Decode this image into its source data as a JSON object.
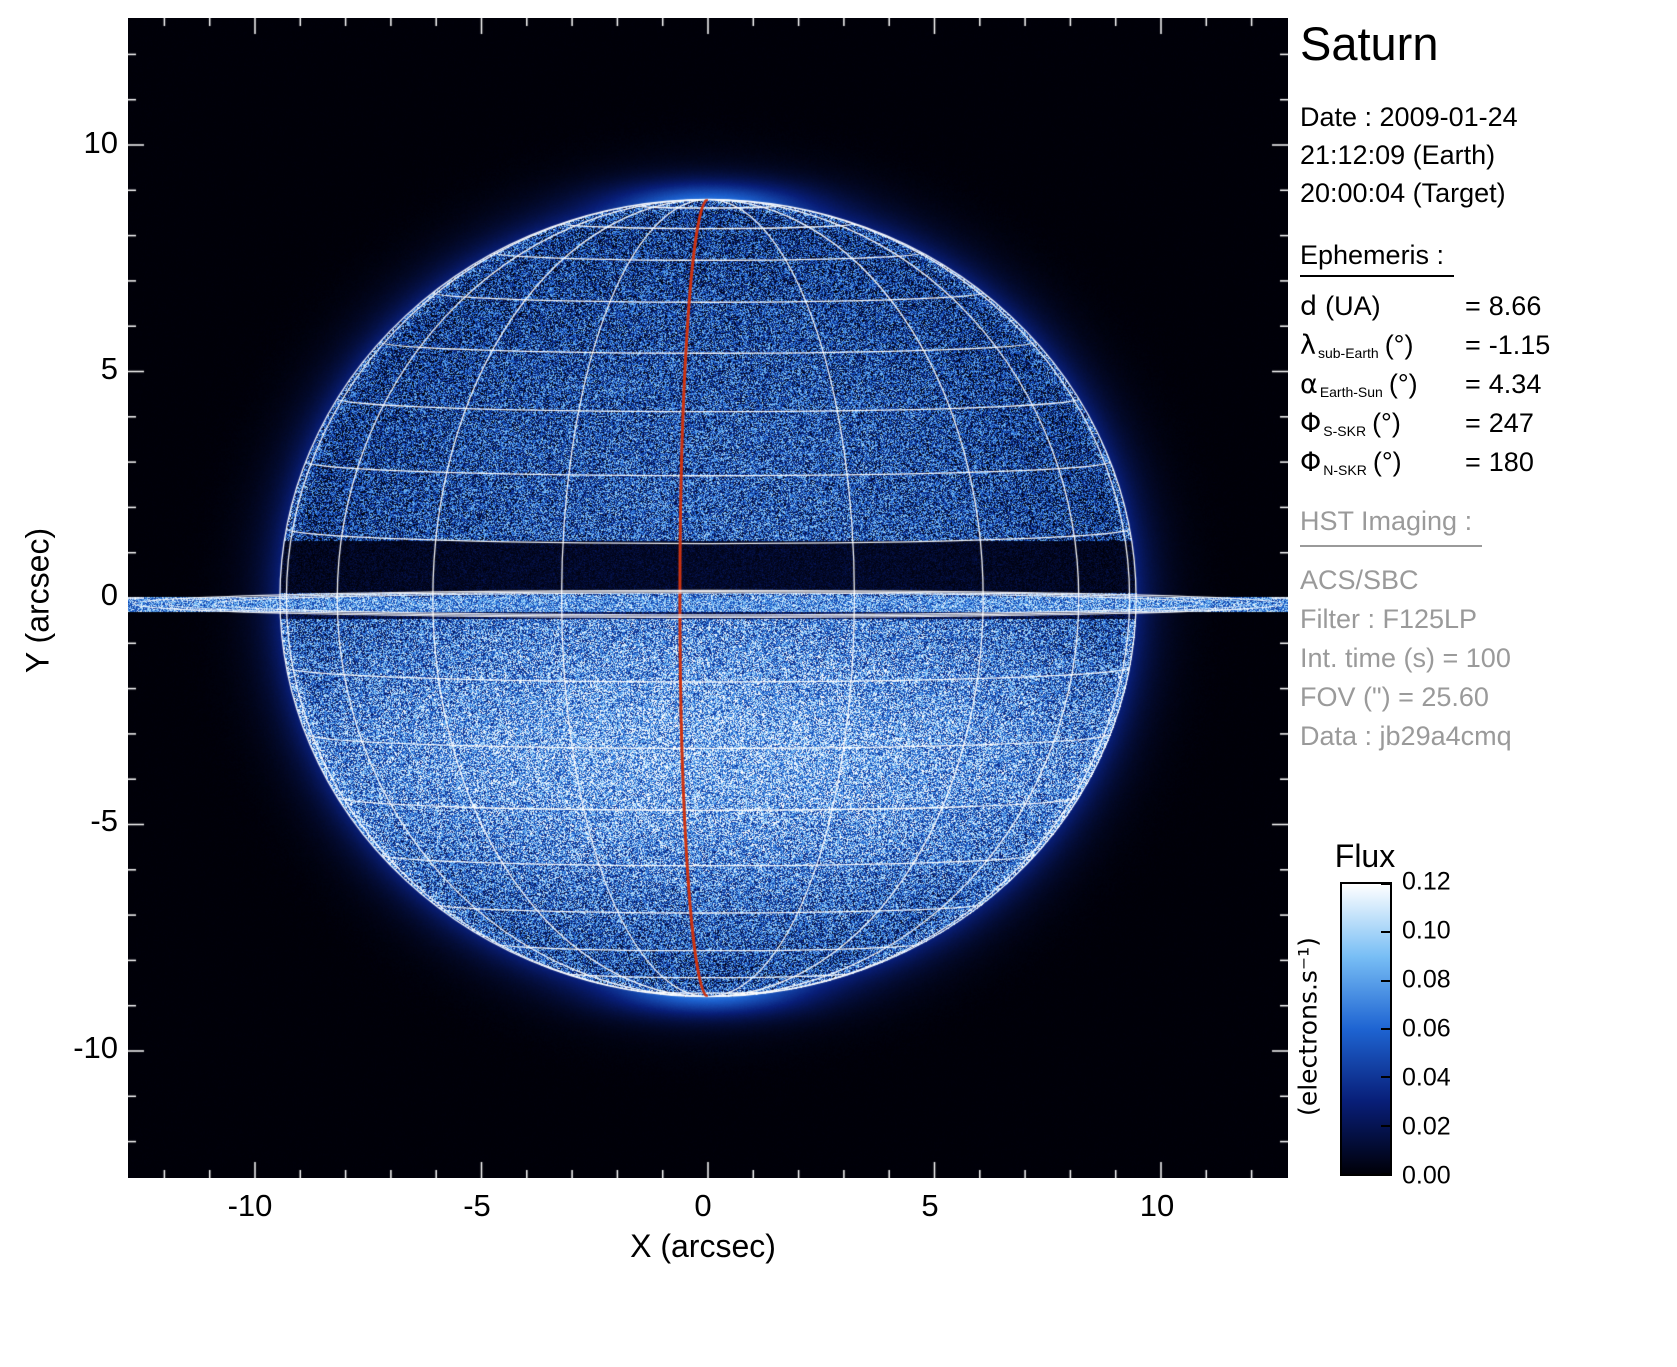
{
  "title": "Saturn",
  "date": {
    "line1": "Date : 2009-01-24",
    "line2": "21:12:09 (Earth)",
    "line3": "20:00:04 (Target)"
  },
  "ephemeris": {
    "heading": "Ephemeris :",
    "rows": [
      {
        "sym": "d",
        "sub": "",
        "unit": "(UA)",
        "eq": "=",
        "value": "8.66"
      },
      {
        "sym": "λ",
        "sub": "sub-Earth",
        "unit": "(°)",
        "eq": "=",
        "value": "-1.15"
      },
      {
        "sym": "α",
        "sub": "Earth-Sun",
        "unit": "(°)",
        "eq": "=",
        "value": "4.34"
      },
      {
        "sym": "Φ",
        "sub": "S-SKR",
        "unit": "(°)",
        "eq": "=",
        "value": "247"
      },
      {
        "sym": "Φ",
        "sub": "N-SKR",
        "unit": "(°)",
        "eq": "=",
        "value": "180"
      }
    ]
  },
  "hst": {
    "heading": "HST Imaging :",
    "lines": [
      "ACS/SBC",
      "Filter : F125LP",
      "Int. time (s) = 100",
      "FOV (\") = 25.60",
      "Data : jb29a4cmq"
    ]
  },
  "colorbar": {
    "title": "Flux",
    "unit": "(electrons.s⁻¹)",
    "ticks": [
      "0.12",
      "0.10",
      "0.08",
      "0.06",
      "0.04",
      "0.02",
      "0.00"
    ]
  },
  "axes": {
    "xlabel": "X (arcsec)",
    "ylabel": "Y (arcsec)",
    "xticks": [
      "-10",
      "-5",
      "0",
      "5",
      "10"
    ],
    "yticks": [
      "10",
      "5",
      "0",
      "-5",
      "-10"
    ]
  },
  "chart_data": {
    "type": "heatmap",
    "title": "Saturn",
    "xlabel": "X (arcsec)",
    "ylabel": "Y (arcsec)",
    "xlim": [
      -12.8,
      12.8
    ],
    "ylim": [
      -12.8,
      12.8
    ],
    "xticks": [
      -10,
      -5,
      0,
      5,
      10
    ],
    "yticks": [
      10,
      5,
      0,
      -5,
      -10
    ],
    "colorbar": {
      "label": "Flux",
      "unit": "(electrons.s⁻¹)",
      "min": 0.0,
      "max": 0.12,
      "tick_step": 0.02
    },
    "description": "HST far-UV image of Saturn (blue flux colormap) with white planetographic lat/lon grid overlay, nearly edge-on rings crossing y≈0, dark ring shadow band just above the equator, faint auroral glow at the poles, and a red central-meridian line.",
    "planet_model": {
      "equatorial_radius_arcsec": 9.45,
      "polar_radius_arcsec": 8.8,
      "ring_extent_arcsec": 12.7,
      "ring_shadow_band_arcsec": [
        0.12,
        1.28
      ],
      "bright_ring_line_arcsec": [
        -0.3,
        0.04
      ],
      "grid_latitude_step_deg": 10,
      "grid_longitude_step_deg": 20
    },
    "ephemeris": {
      "d_UA": 8.66,
      "lambda_subEarth_deg": -1.15,
      "alpha_EarthSun_deg": 4.34,
      "phi_S_SKR_deg": 247,
      "phi_N_SKR_deg": 180
    },
    "hst_imaging": {
      "instrument": "ACS/SBC",
      "filter": "F125LP",
      "int_time_s": 100,
      "fov_arcsec": 25.6,
      "data_id": "jb29a4cmq"
    }
  }
}
